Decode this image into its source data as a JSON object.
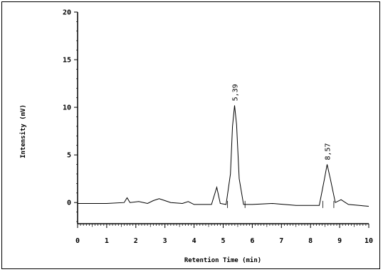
{
  "chart_data": {
    "type": "line",
    "xlabel": "Retention Time (min)",
    "ylabel": "Intensity (mV)",
    "xlim": [
      0,
      10
    ],
    "ylim": [
      -2,
      20
    ],
    "x_ticks": [
      0,
      1,
      2,
      3,
      4,
      5,
      6,
      7,
      8,
      9,
      10
    ],
    "y_ticks": [
      0,
      5,
      10,
      15,
      20
    ],
    "grid": false,
    "series": [
      {
        "x": [
          0,
          1.0,
          1.6,
          1.7,
          1.8,
          2.1,
          2.4,
          2.6,
          2.8,
          3.0,
          3.2,
          3.6,
          3.8,
          4.0,
          4.6,
          4.78,
          4.9,
          5.1,
          5.25,
          5.32,
          5.39,
          5.46,
          5.55,
          5.7,
          6.0,
          6.7,
          7.5,
          8.3,
          8.48,
          8.57,
          8.68,
          8.85,
          9.05,
          9.3,
          10.0
        ],
        "values": [
          -0.1,
          -0.1,
          0.0,
          0.5,
          0.0,
          0.1,
          -0.1,
          0.2,
          0.4,
          0.2,
          0.0,
          -0.1,
          0.1,
          -0.2,
          -0.2,
          1.6,
          -0.1,
          -0.2,
          3.0,
          8.0,
          10.2,
          8.2,
          2.5,
          -0.2,
          -0.2,
          -0.1,
          -0.3,
          -0.3,
          2.5,
          4.0,
          2.5,
          0.0,
          0.3,
          -0.2,
          -0.4
        ]
      }
    ],
    "annotations": [
      {
        "text": "5,39",
        "x": 5.39,
        "y": 10.2
      },
      {
        "text": "8,57",
        "x": 8.57,
        "y": 4.0
      }
    ]
  }
}
